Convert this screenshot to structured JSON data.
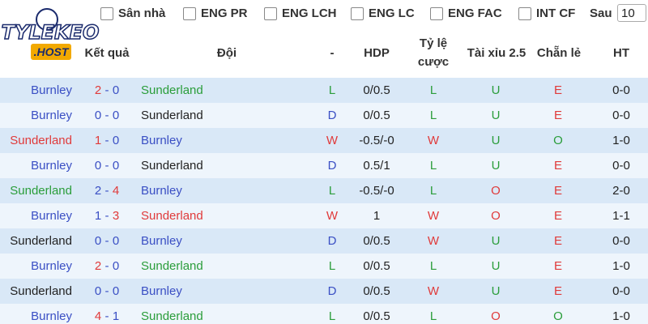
{
  "logo": {
    "line1": "TYLEKEO",
    "line2": ".HOST"
  },
  "filters": {
    "items": [
      "Sân nhà",
      "ENG PR",
      "ENG LCH",
      "ENG LC",
      "ENG FAC",
      "INT CF"
    ],
    "after_label": "Sau",
    "after_value": "10"
  },
  "table": {
    "headers": {
      "result": "Kết quả",
      "team": "Đội",
      "outcome": "-",
      "hdp": "HDP",
      "odds_line1": "Tỷ lệ",
      "odds_line2": "cược",
      "over_under": "Tài xỉu 2.5",
      "odd_even": "Chẵn lẻ",
      "ht": "HT"
    },
    "score_separator": "-",
    "rows": [
      {
        "home": {
          "text": "Burnley",
          "color": "#3a4fc4"
        },
        "hs": {
          "text": "2",
          "color": "#e03a3a"
        },
        "as": {
          "text": "0",
          "color": "#3a4fc4"
        },
        "away": {
          "text": "Sunderland",
          "color": "#2a9d3a"
        },
        "res": {
          "text": "L",
          "color": "#2a9d3a"
        },
        "hdp": {
          "text": "0/0.5",
          "color": "#222"
        },
        "odds": {
          "text": "L",
          "color": "#2a9d3a"
        },
        "ou": {
          "text": "U",
          "color": "#2a9d3a"
        },
        "oe": {
          "text": "E",
          "color": "#e03a3a"
        },
        "ht": {
          "text": "0-0",
          "color": "#222"
        }
      },
      {
        "home": {
          "text": "Burnley",
          "color": "#3a4fc4"
        },
        "hs": {
          "text": "0",
          "color": "#3a4fc4"
        },
        "as": {
          "text": "0",
          "color": "#3a4fc4"
        },
        "away": {
          "text": "Sunderland",
          "color": "#222"
        },
        "res": {
          "text": "D",
          "color": "#3a4fc4"
        },
        "hdp": {
          "text": "0/0.5",
          "color": "#222"
        },
        "odds": {
          "text": "L",
          "color": "#2a9d3a"
        },
        "ou": {
          "text": "U",
          "color": "#2a9d3a"
        },
        "oe": {
          "text": "E",
          "color": "#e03a3a"
        },
        "ht": {
          "text": "0-0",
          "color": "#222"
        }
      },
      {
        "home": {
          "text": "Sunderland",
          "color": "#e03a3a"
        },
        "hs": {
          "text": "1",
          "color": "#e03a3a"
        },
        "as": {
          "text": "0",
          "color": "#3a4fc4"
        },
        "away": {
          "text": "Burnley",
          "color": "#3a4fc4"
        },
        "res": {
          "text": "W",
          "color": "#e03a3a"
        },
        "hdp": {
          "text": "-0.5/-0",
          "color": "#222"
        },
        "odds": {
          "text": "W",
          "color": "#e03a3a"
        },
        "ou": {
          "text": "U",
          "color": "#2a9d3a"
        },
        "oe": {
          "text": "O",
          "color": "#2a9d3a"
        },
        "ht": {
          "text": "1-0",
          "color": "#222"
        }
      },
      {
        "home": {
          "text": "Burnley",
          "color": "#3a4fc4"
        },
        "hs": {
          "text": "0",
          "color": "#3a4fc4"
        },
        "as": {
          "text": "0",
          "color": "#3a4fc4"
        },
        "away": {
          "text": "Sunderland",
          "color": "#222"
        },
        "res": {
          "text": "D",
          "color": "#3a4fc4"
        },
        "hdp": {
          "text": "0.5/1",
          "color": "#222"
        },
        "odds": {
          "text": "L",
          "color": "#2a9d3a"
        },
        "ou": {
          "text": "U",
          "color": "#2a9d3a"
        },
        "oe": {
          "text": "E",
          "color": "#e03a3a"
        },
        "ht": {
          "text": "0-0",
          "color": "#222"
        }
      },
      {
        "home": {
          "text": "Sunderland",
          "color": "#2a9d3a"
        },
        "hs": {
          "text": "2",
          "color": "#3a4fc4"
        },
        "as": {
          "text": "4",
          "color": "#e03a3a"
        },
        "away": {
          "text": "Burnley",
          "color": "#3a4fc4"
        },
        "res": {
          "text": "L",
          "color": "#2a9d3a"
        },
        "hdp": {
          "text": "-0.5/-0",
          "color": "#222"
        },
        "odds": {
          "text": "L",
          "color": "#2a9d3a"
        },
        "ou": {
          "text": "O",
          "color": "#e03a3a"
        },
        "oe": {
          "text": "E",
          "color": "#e03a3a"
        },
        "ht": {
          "text": "2-0",
          "color": "#222"
        }
      },
      {
        "home": {
          "text": "Burnley",
          "color": "#3a4fc4"
        },
        "hs": {
          "text": "1",
          "color": "#3a4fc4"
        },
        "as": {
          "text": "3",
          "color": "#e03a3a"
        },
        "away": {
          "text": "Sunderland",
          "color": "#e03a3a"
        },
        "res": {
          "text": "W",
          "color": "#e03a3a"
        },
        "hdp": {
          "text": "1",
          "color": "#222"
        },
        "odds": {
          "text": "W",
          "color": "#e03a3a"
        },
        "ou": {
          "text": "O",
          "color": "#e03a3a"
        },
        "oe": {
          "text": "E",
          "color": "#e03a3a"
        },
        "ht": {
          "text": "1-1",
          "color": "#222"
        }
      },
      {
        "home": {
          "text": "Sunderland",
          "color": "#222"
        },
        "hs": {
          "text": "0",
          "color": "#3a4fc4"
        },
        "as": {
          "text": "0",
          "color": "#3a4fc4"
        },
        "away": {
          "text": "Burnley",
          "color": "#3a4fc4"
        },
        "res": {
          "text": "D",
          "color": "#3a4fc4"
        },
        "hdp": {
          "text": "0/0.5",
          "color": "#222"
        },
        "odds": {
          "text": "W",
          "color": "#e03a3a"
        },
        "ou": {
          "text": "U",
          "color": "#2a9d3a"
        },
        "oe": {
          "text": "E",
          "color": "#e03a3a"
        },
        "ht": {
          "text": "0-0",
          "color": "#222"
        }
      },
      {
        "home": {
          "text": "Burnley",
          "color": "#3a4fc4"
        },
        "hs": {
          "text": "2",
          "color": "#e03a3a"
        },
        "as": {
          "text": "0",
          "color": "#3a4fc4"
        },
        "away": {
          "text": "Sunderland",
          "color": "#2a9d3a"
        },
        "res": {
          "text": "L",
          "color": "#2a9d3a"
        },
        "hdp": {
          "text": "0/0.5",
          "color": "#222"
        },
        "odds": {
          "text": "L",
          "color": "#2a9d3a"
        },
        "ou": {
          "text": "U",
          "color": "#2a9d3a"
        },
        "oe": {
          "text": "E",
          "color": "#e03a3a"
        },
        "ht": {
          "text": "1-0",
          "color": "#222"
        }
      },
      {
        "home": {
          "text": "Sunderland",
          "color": "#222"
        },
        "hs": {
          "text": "0",
          "color": "#3a4fc4"
        },
        "as": {
          "text": "0",
          "color": "#3a4fc4"
        },
        "away": {
          "text": "Burnley",
          "color": "#3a4fc4"
        },
        "res": {
          "text": "D",
          "color": "#3a4fc4"
        },
        "hdp": {
          "text": "0/0.5",
          "color": "#222"
        },
        "odds": {
          "text": "W",
          "color": "#e03a3a"
        },
        "ou": {
          "text": "U",
          "color": "#2a9d3a"
        },
        "oe": {
          "text": "E",
          "color": "#e03a3a"
        },
        "ht": {
          "text": "0-0",
          "color": "#222"
        }
      },
      {
        "home": {
          "text": "Burnley",
          "color": "#3a4fc4"
        },
        "hs": {
          "text": "4",
          "color": "#e03a3a"
        },
        "as": {
          "text": "1",
          "color": "#3a4fc4"
        },
        "away": {
          "text": "Sunderland",
          "color": "#2a9d3a"
        },
        "res": {
          "text": "L",
          "color": "#2a9d3a"
        },
        "hdp": {
          "text": "0/0.5",
          "color": "#222"
        },
        "odds": {
          "text": "L",
          "color": "#2a9d3a"
        },
        "ou": {
          "text": "O",
          "color": "#e03a3a"
        },
        "oe": {
          "text": "O",
          "color": "#2a9d3a"
        },
        "ht": {
          "text": "1-0",
          "color": "#222"
        }
      }
    ]
  }
}
